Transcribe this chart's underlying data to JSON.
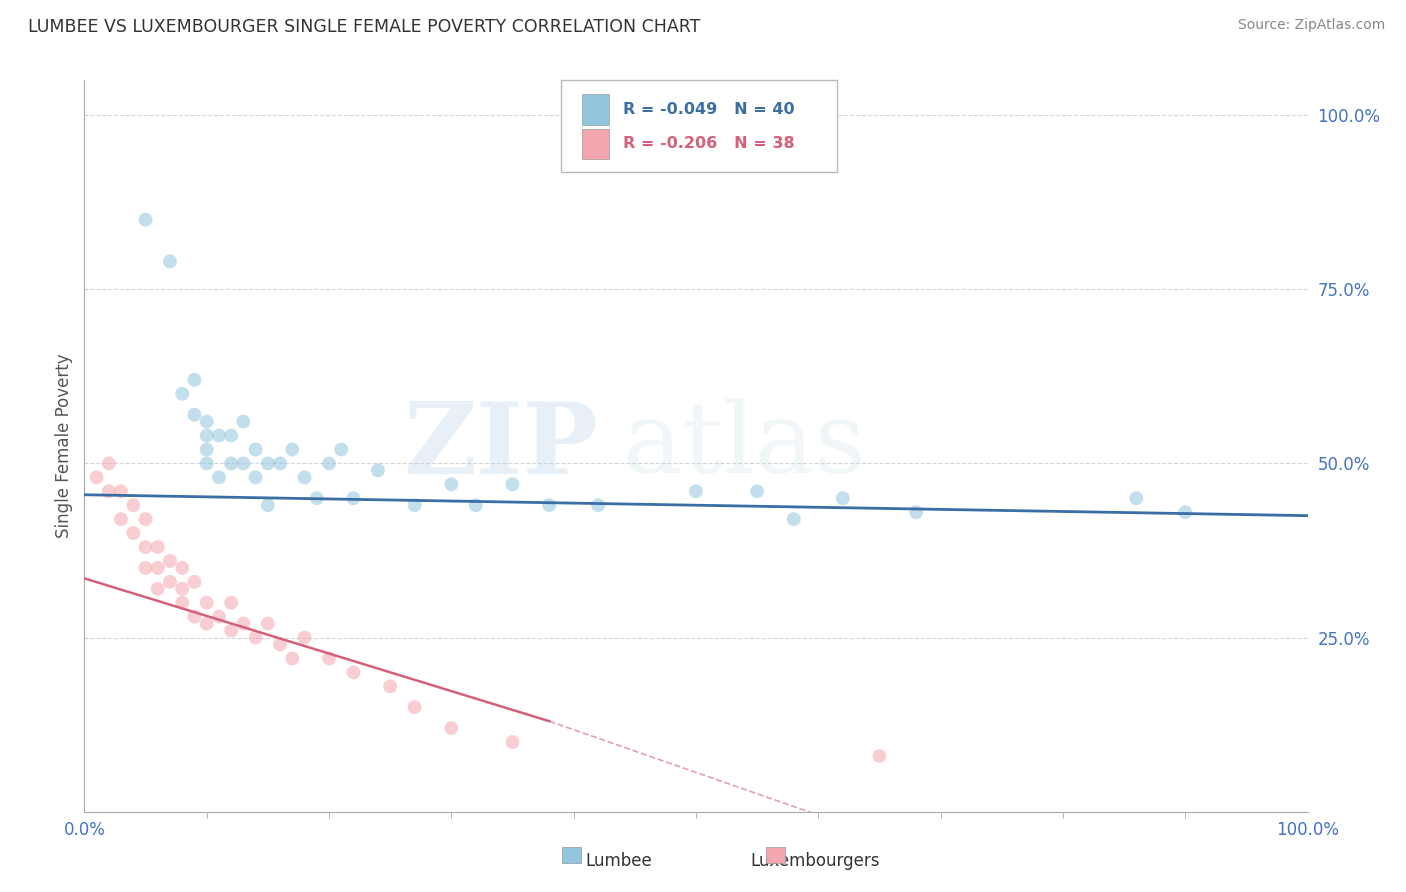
{
  "title": "LUMBEE VS LUXEMBOURGER SINGLE FEMALE POVERTY CORRELATION CHART",
  "source": "Source: ZipAtlas.com",
  "ylabel": "Single Female Poverty",
  "lumbee_R": -0.049,
  "lumbee_N": 40,
  "luxembourger_R": -0.206,
  "luxembourger_N": 38,
  "lumbee_color": "#92C5DE",
  "luxembourger_color": "#F4A6B0",
  "lumbee_line_color": "#3A6EA5",
  "luxembourger_line_color": "#D4607A",
  "background_color": "#ffffff",
  "grid_color": "#cccccc",
  "title_color": "#333333",
  "axis_label_color": "#4472C4",
  "lumbee_x": [
    0.05,
    0.07,
    0.08,
    0.09,
    0.09,
    0.1,
    0.1,
    0.1,
    0.1,
    0.11,
    0.11,
    0.12,
    0.12,
    0.13,
    0.13,
    0.14,
    0.14,
    0.15,
    0.15,
    0.16,
    0.17,
    0.18,
    0.19,
    0.2,
    0.21,
    0.22,
    0.24,
    0.27,
    0.3,
    0.32,
    0.35,
    0.38,
    0.42,
    0.5,
    0.55,
    0.58,
    0.62,
    0.68,
    0.86,
    0.9
  ],
  "lumbee_y": [
    0.85,
    0.79,
    0.6,
    0.62,
    0.57,
    0.54,
    0.56,
    0.52,
    0.5,
    0.54,
    0.48,
    0.54,
    0.5,
    0.56,
    0.5,
    0.52,
    0.48,
    0.5,
    0.44,
    0.5,
    0.52,
    0.48,
    0.45,
    0.5,
    0.52,
    0.45,
    0.49,
    0.44,
    0.47,
    0.44,
    0.47,
    0.44,
    0.44,
    0.46,
    0.46,
    0.42,
    0.45,
    0.43,
    0.45,
    0.43
  ],
  "luxembourger_x": [
    0.01,
    0.02,
    0.02,
    0.03,
    0.03,
    0.04,
    0.04,
    0.05,
    0.05,
    0.05,
    0.06,
    0.06,
    0.06,
    0.07,
    0.07,
    0.08,
    0.08,
    0.08,
    0.09,
    0.09,
    0.1,
    0.1,
    0.11,
    0.12,
    0.12,
    0.13,
    0.14,
    0.15,
    0.16,
    0.17,
    0.18,
    0.2,
    0.22,
    0.25,
    0.27,
    0.3,
    0.35,
    0.65
  ],
  "luxembourger_y": [
    0.48,
    0.5,
    0.46,
    0.46,
    0.42,
    0.44,
    0.4,
    0.42,
    0.38,
    0.35,
    0.38,
    0.35,
    0.32,
    0.36,
    0.33,
    0.32,
    0.35,
    0.3,
    0.33,
    0.28,
    0.3,
    0.27,
    0.28,
    0.3,
    0.26,
    0.27,
    0.25,
    0.27,
    0.24,
    0.22,
    0.25,
    0.22,
    0.2,
    0.18,
    0.15,
    0.12,
    0.1,
    0.08
  ],
  "xlim": [
    0.0,
    1.0
  ],
  "ylim": [
    0.0,
    1.05
  ],
  "yticks": [
    0.0,
    0.25,
    0.5,
    0.75,
    1.0
  ],
  "ytick_labels": [
    "",
    "25.0%",
    "50.0%",
    "75.0%",
    "100.0%"
  ],
  "xtick_labels": [
    "0.0%",
    "100.0%"
  ],
  "watermark_zip": "ZIP",
  "watermark_atlas": "atlas",
  "marker_size": 100,
  "marker_alpha": 0.55,
  "lumbee_line": [
    0.0,
    0.455,
    1.0,
    0.425
  ],
  "luxembourger_line_solid": [
    0.0,
    0.335,
    0.38,
    0.13
  ],
  "luxembourger_line_dashed": [
    0.38,
    0.13,
    1.0,
    -0.25
  ]
}
